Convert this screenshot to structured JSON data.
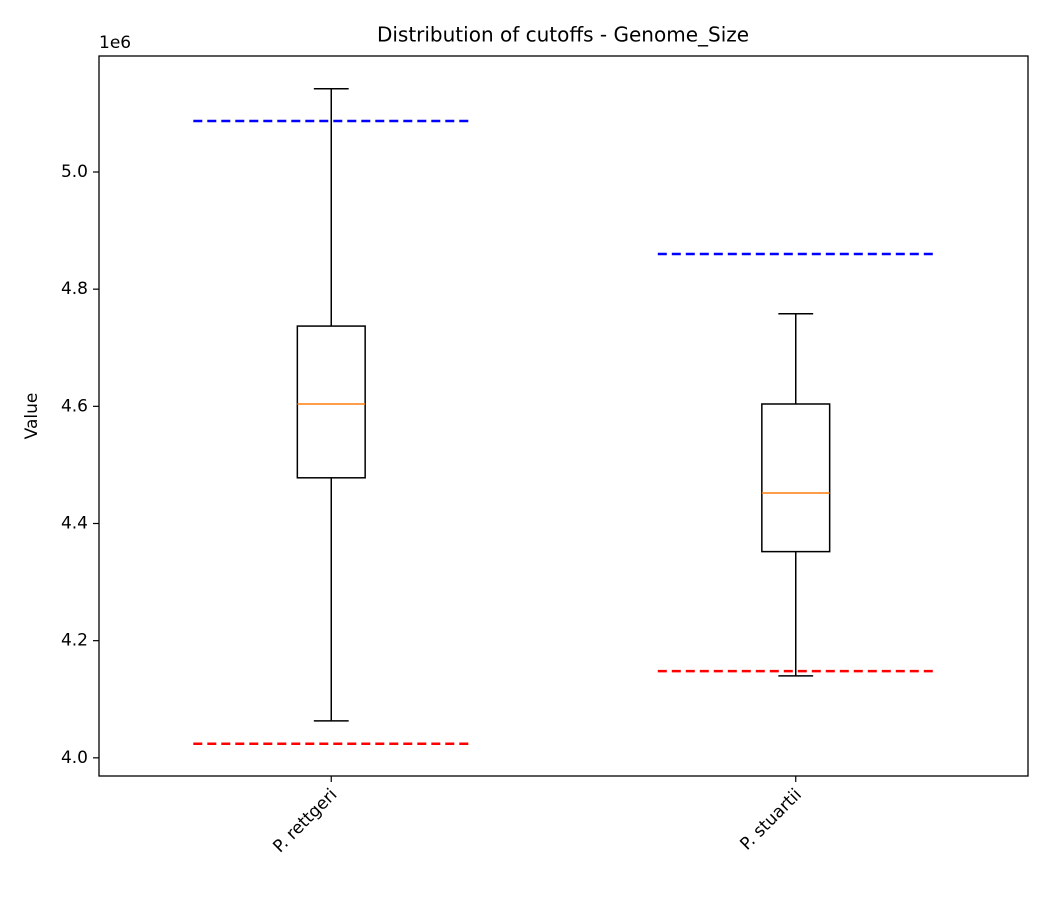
{
  "chart_data": {
    "type": "box",
    "title": "Distribution of cutoffs - Genome_Size",
    "y_label": "Value",
    "offset_label": "1e6",
    "categories": [
      "P. rettgeri",
      "P. stuartii"
    ],
    "boxes": {
      "whisker_low": [
        4.063,
        4.14
      ],
      "q1": [
        4.478,
        4.352
      ],
      "median": [
        4.604,
        4.452
      ],
      "q3": [
        4.737,
        4.604
      ],
      "whisker_high": [
        5.142,
        4.758
      ]
    },
    "box_color": "#000000",
    "median_color": "#ff7f0e",
    "series": [
      {
        "color": "#0000ff",
        "dashed": true,
        "values": [
          5.087,
          4.86
        ]
      },
      {
        "color": "#ff0000",
        "dashed": true,
        "values": [
          4.024,
          4.148
        ]
      }
    ],
    "ylim": [
      3.969,
      5.198
    ],
    "yticks": [
      {
        "value": 4,
        "label": "4.0"
      },
      4.2,
      4.4,
      4.6,
      4.8,
      {
        "value": 5,
        "label": "5.0"
      }
    ],
    "grid": false
  }
}
